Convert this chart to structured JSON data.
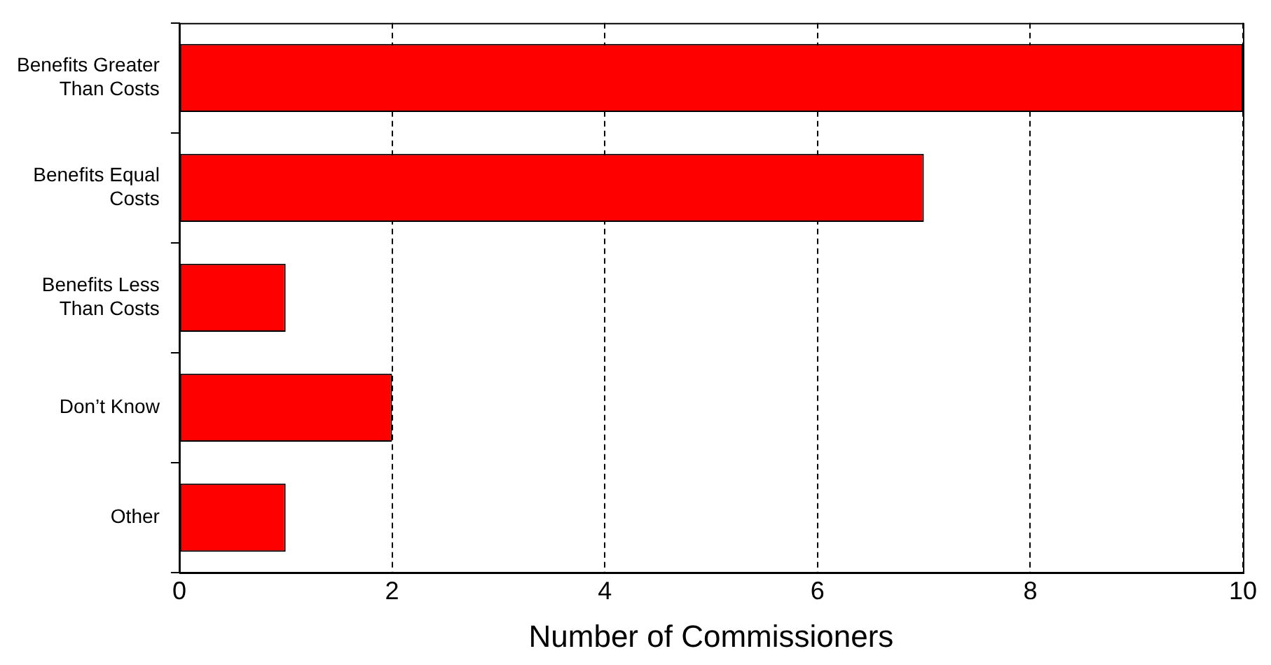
{
  "chart_data": {
    "type": "bar",
    "orientation": "horizontal",
    "xlabel": "Number of Commissioners",
    "categories": [
      "Benefits Greater Than Costs",
      "Benefits Equal Costs",
      "Benefits Less Than Costs",
      "Don’t Know",
      "Other"
    ],
    "values": [
      10,
      7,
      1,
      2,
      1
    ],
    "color": "#ff0000",
    "xlim": [
      0,
      10
    ],
    "xticks": [
      0,
      2,
      4,
      6,
      8,
      10
    ],
    "grid": "x",
    "legend": false
  }
}
